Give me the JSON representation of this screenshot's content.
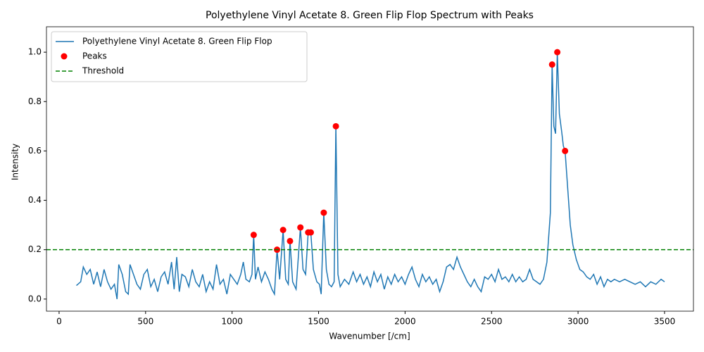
{
  "chart_data": {
    "type": "line",
    "title": "Polyethylene Vinyl Acetate 8. Green Flip Flop Spectrum with Peaks",
    "xlabel": "Wavenumber [/cm]",
    "ylabel": "Intensity",
    "x": [
      100,
      125,
      140,
      160,
      180,
      200,
      220,
      240,
      260,
      280,
      300,
      320,
      335,
      345,
      365,
      385,
      400,
      410,
      430,
      450,
      470,
      490,
      510,
      530,
      550,
      570,
      590,
      610,
      630,
      650,
      665,
      680,
      695,
      710,
      730,
      750,
      770,
      790,
      810,
      830,
      850,
      870,
      890,
      910,
      930,
      950,
      970,
      990,
      1010,
      1030,
      1050,
      1065,
      1080,
      1100,
      1115,
      1125,
      1135,
      1150,
      1170,
      1190,
      1210,
      1230,
      1245,
      1260,
      1275,
      1295,
      1310,
      1325,
      1335,
      1350,
      1370,
      1395,
      1410,
      1425,
      1440,
      1455,
      1470,
      1490,
      1505,
      1515,
      1530,
      1545,
      1560,
      1575,
      1590,
      1600,
      1612,
      1625,
      1650,
      1675,
      1700,
      1720,
      1740,
      1760,
      1780,
      1800,
      1820,
      1840,
      1860,
      1880,
      1900,
      1920,
      1940,
      1960,
      1980,
      2000,
      2020,
      2040,
      2060,
      2080,
      2100,
      2120,
      2140,
      2160,
      2180,
      2200,
      2220,
      2240,
      2260,
      2280,
      2300,
      2320,
      2340,
      2360,
      2380,
      2400,
      2420,
      2440,
      2460,
      2480,
      2500,
      2520,
      2540,
      2560,
      2580,
      2600,
      2620,
      2640,
      2660,
      2680,
      2700,
      2720,
      2740,
      2760,
      2780,
      2800,
      2820,
      2840,
      2850,
      2860,
      2870,
      2880,
      2892,
      2905,
      2915,
      2925,
      2940,
      2955,
      2970,
      2990,
      3010,
      3030,
      3050,
      3070,
      3090,
      3110,
      3130,
      3150,
      3170,
      3190,
      3210,
      3240,
      3270,
      3300,
      3330,
      3360,
      3390,
      3420,
      3450,
      3480,
      3500
    ],
    "series": [
      {
        "name": "Polyethylene Vinyl Acetate 8. Green Flip Flop",
        "type": "line",
        "color": "#1f77b4",
        "values": [
          0.055,
          0.07,
          0.13,
          0.1,
          0.12,
          0.06,
          0.11,
          0.05,
          0.12,
          0.07,
          0.04,
          0.06,
          0.0,
          0.14,
          0.1,
          0.03,
          0.02,
          0.14,
          0.1,
          0.06,
          0.04,
          0.1,
          0.12,
          0.05,
          0.08,
          0.03,
          0.09,
          0.11,
          0.06,
          0.15,
          0.04,
          0.17,
          0.03,
          0.1,
          0.09,
          0.05,
          0.12,
          0.07,
          0.05,
          0.1,
          0.03,
          0.07,
          0.04,
          0.14,
          0.06,
          0.08,
          0.02,
          0.1,
          0.08,
          0.06,
          0.1,
          0.15,
          0.08,
          0.07,
          0.1,
          0.26,
          0.08,
          0.13,
          0.07,
          0.11,
          0.08,
          0.04,
          0.02,
          0.2,
          0.08,
          0.28,
          0.08,
          0.06,
          0.235,
          0.07,
          0.04,
          0.29,
          0.12,
          0.1,
          0.27,
          0.27,
          0.12,
          0.07,
          0.06,
          0.02,
          0.35,
          0.12,
          0.06,
          0.05,
          0.07,
          0.7,
          0.1,
          0.05,
          0.08,
          0.06,
          0.11,
          0.07,
          0.1,
          0.06,
          0.09,
          0.05,
          0.11,
          0.07,
          0.1,
          0.04,
          0.09,
          0.06,
          0.1,
          0.07,
          0.09,
          0.06,
          0.1,
          0.13,
          0.08,
          0.05,
          0.1,
          0.07,
          0.09,
          0.06,
          0.08,
          0.03,
          0.07,
          0.13,
          0.14,
          0.12,
          0.17,
          0.13,
          0.1,
          0.07,
          0.05,
          0.08,
          0.05,
          0.03,
          0.09,
          0.08,
          0.1,
          0.07,
          0.12,
          0.08,
          0.09,
          0.07,
          0.1,
          0.07,
          0.09,
          0.07,
          0.08,
          0.12,
          0.08,
          0.07,
          0.06,
          0.08,
          0.15,
          0.35,
          0.95,
          0.7,
          0.67,
          1.0,
          0.75,
          0.68,
          0.62,
          0.6,
          0.45,
          0.3,
          0.22,
          0.16,
          0.12,
          0.11,
          0.09,
          0.08,
          0.1,
          0.06,
          0.09,
          0.05,
          0.08,
          0.07,
          0.08,
          0.07,
          0.08,
          0.07,
          0.06,
          0.07,
          0.05,
          0.07,
          0.06,
          0.08,
          0.07
        ]
      },
      {
        "name": "Peaks",
        "type": "scatter",
        "color": "#ff0000",
        "x": [
          1125,
          1260,
          1295,
          1335,
          1395,
          1440,
          1455,
          1530,
          1600,
          2850,
          2880,
          2925
        ],
        "values": [
          0.26,
          0.2,
          0.28,
          0.235,
          0.29,
          0.27,
          0.27,
          0.35,
          0.7,
          0.95,
          1.0,
          0.6
        ]
      },
      {
        "name": "Threshold",
        "type": "hline",
        "color": "#008000",
        "value": 0.2
      }
    ],
    "xlim": [
      -73,
      3667
    ],
    "ylim": [
      -0.049,
      1.103
    ],
    "xticks": [
      0,
      500,
      1000,
      1500,
      2000,
      2500,
      3000,
      3500
    ],
    "yticks": [
      {
        "value": 0,
        "label": "0.0"
      },
      0.2,
      0.4,
      0.6,
      0.8,
      {
        "value": 1,
        "label": "1.0"
      }
    ],
    "legend": "upper left"
  }
}
